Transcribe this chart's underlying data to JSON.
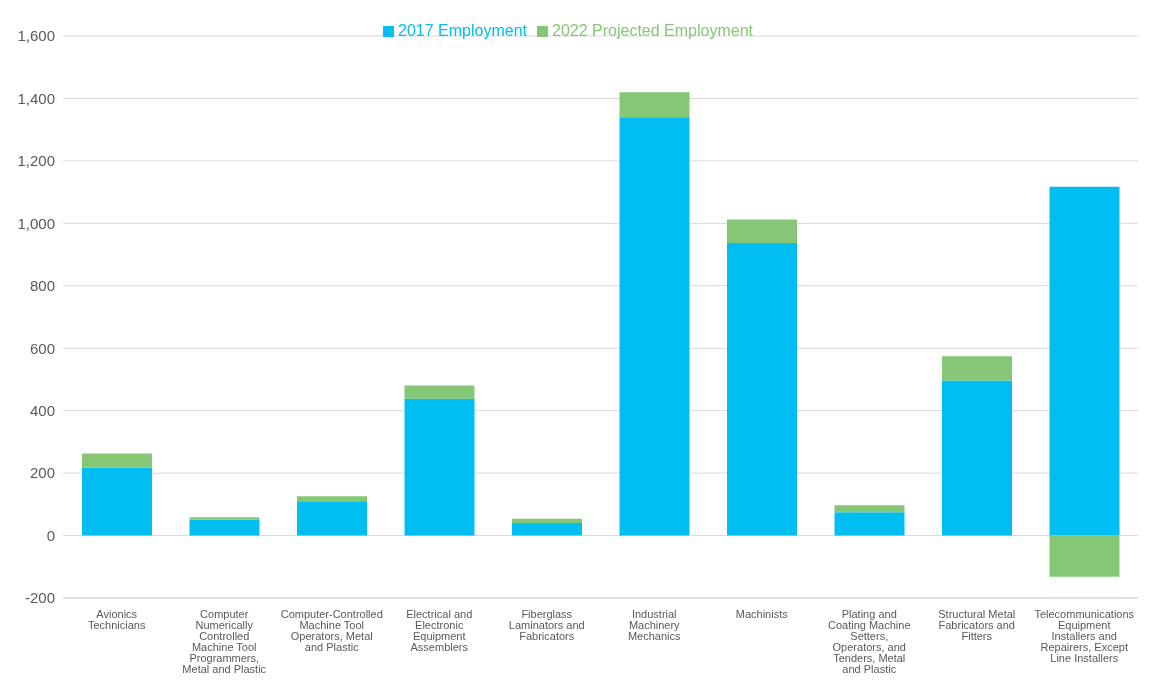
{
  "chart_data": {
    "type": "bar",
    "stacked": true,
    "categories": [
      "Avionics Technicians",
      "Computer Numerically Controlled Machine Tool Programmers, Metal and Plastic",
      "Computer-Controlled Machine Tool Operators, Metal and Plastic",
      "Electrical and Electronic Equipment Assemblers",
      "Fiberglass Laminators and Fabricators",
      "Industrial Machinery Mechanics",
      "Machinists",
      "Plating and Coating Machine Setters, Operators, and Tenders, Metal and Plastic",
      "Structural Metal Fabricators and Fitters",
      "Telecommunications Equipment Installers and Repairers, Except Line Installers"
    ],
    "series": [
      {
        "name": "2017 Employment",
        "color": "#00bdf2",
        "values": [
          217,
          51,
          110,
          438,
          40,
          1340,
          937,
          75,
          497,
          1117
        ]
      },
      {
        "name": "2022 Projected Employment",
        "color": "#85c776",
        "values": [
          46,
          8,
          16,
          43,
          14,
          80,
          75,
          22,
          77,
          -132
        ]
      }
    ],
    "ylim": [
      -200,
      1600
    ],
    "yticks": [
      {
        "value": -200,
        "label": "-200"
      },
      {
        "value": 0,
        "label": "0"
      },
      {
        "value": 200,
        "label": "200"
      },
      {
        "value": 400,
        "label": "400"
      },
      {
        "value": 600,
        "label": "600"
      },
      {
        "value": 800,
        "label": "800"
      },
      {
        "value": 1000,
        "label": "1,000"
      },
      {
        "value": 1200,
        "label": "1,200"
      },
      {
        "value": 1400,
        "label": "1,400"
      },
      {
        "value": 1600,
        "label": "1,600"
      }
    ],
    "grid": "y",
    "legend": "top"
  }
}
